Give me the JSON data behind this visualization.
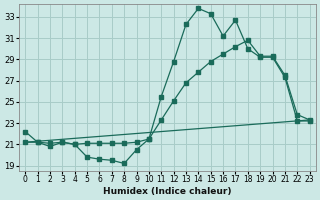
{
  "xlabel": "Humidex (Indice chaleur)",
  "xlim": [
    -0.5,
    23.5
  ],
  "ylim": [
    18.5,
    34.2
  ],
  "xticks": [
    0,
    1,
    2,
    3,
    4,
    5,
    6,
    7,
    8,
    9,
    10,
    11,
    12,
    13,
    14,
    15,
    16,
    17,
    18,
    19,
    20,
    21,
    22,
    23
  ],
  "yticks": [
    19,
    21,
    23,
    25,
    27,
    29,
    31,
    33
  ],
  "bg_color": "#cce8e5",
  "line_color": "#1a6b5a",
  "grid_color": "#a8ccc8",
  "line1_x": [
    0,
    1,
    2,
    3,
    4,
    5,
    6,
    7,
    8,
    9,
    10,
    11,
    12,
    13,
    14,
    15,
    16,
    17,
    18,
    19,
    20,
    21,
    22,
    23
  ],
  "line1_y": [
    22.2,
    21.2,
    20.8,
    21.2,
    21.0,
    19.8,
    19.6,
    19.5,
    19.2,
    20.5,
    21.5,
    25.5,
    28.8,
    32.3,
    33.8,
    33.3,
    31.2,
    32.7,
    30.0,
    29.2,
    29.2,
    27.3,
    23.2,
    23.2
  ],
  "line2_x": [
    0,
    1,
    2,
    3,
    4,
    5,
    6,
    7,
    8,
    9,
    10,
    11,
    12,
    13,
    14,
    15,
    16,
    17,
    18,
    19,
    20,
    21,
    22,
    23
  ],
  "line2_y": [
    21.2,
    21.2,
    21.1,
    21.2,
    21.0,
    21.1,
    21.1,
    21.1,
    21.1,
    21.2,
    21.5,
    23.3,
    25.1,
    26.8,
    27.8,
    28.8,
    29.5,
    30.2,
    30.8,
    29.3,
    29.3,
    27.5,
    23.8,
    23.3
  ],
  "line3_x": [
    0,
    23
  ],
  "line3_y": [
    21.2,
    23.3
  ]
}
